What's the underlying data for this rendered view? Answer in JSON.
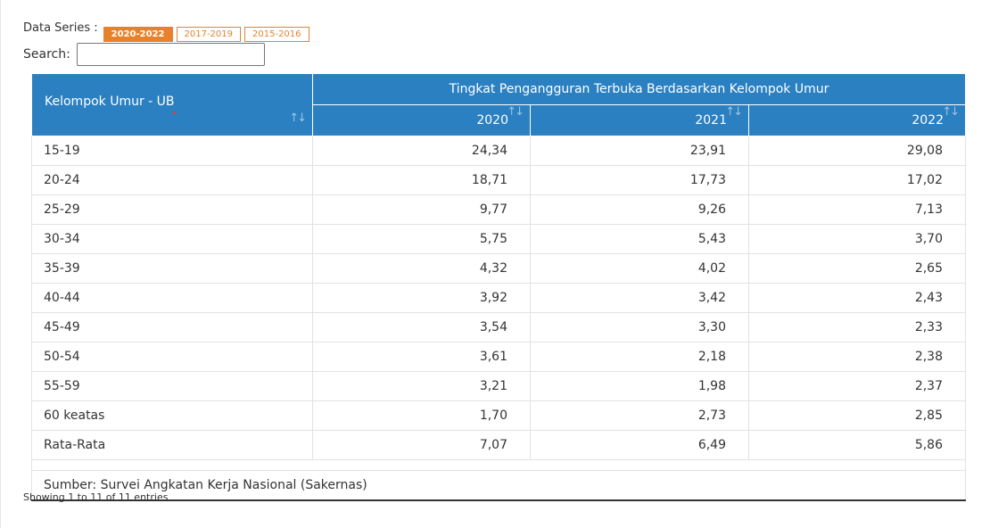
{
  "series": {
    "label": "Data Series :",
    "options": [
      "2020-2022",
      "2017-2019",
      "2015-2016"
    ],
    "active": "2020-2022"
  },
  "search": {
    "label": "Search:",
    "value": "",
    "placeholder": ""
  },
  "table": {
    "row_header": "Kelompok Umur - UB",
    "group_header": "Tingkat Pengangguran Terbuka Berdasarkan Kelompok Umur",
    "years": [
      "2020",
      "2021",
      "2022"
    ],
    "rows": [
      {
        "cat": "15-19",
        "v": [
          "24,34",
          "23,91",
          "29,08"
        ]
      },
      {
        "cat": "20-24",
        "v": [
          "18,71",
          "17,73",
          "17,02"
        ]
      },
      {
        "cat": "25-29",
        "v": [
          "9,77",
          "9,26",
          "7,13"
        ]
      },
      {
        "cat": "30-34",
        "v": [
          "5,75",
          "5,43",
          "3,70"
        ]
      },
      {
        "cat": "35-39",
        "v": [
          "4,32",
          "4,02",
          "2,65"
        ]
      },
      {
        "cat": "40-44",
        "v": [
          "3,92",
          "3,42",
          "2,43"
        ]
      },
      {
        "cat": "45-49",
        "v": [
          "3,54",
          "3,30",
          "2,33"
        ]
      },
      {
        "cat": "50-54",
        "v": [
          "3,61",
          "2,18",
          "2,38"
        ]
      },
      {
        "cat": "55-59",
        "v": [
          "3,21",
          "1,98",
          "2,37"
        ]
      },
      {
        "cat": "60 keatas",
        "v": [
          "1,70",
          "2,73",
          "2,85"
        ]
      },
      {
        "cat": "Rata-Rata",
        "v": [
          "7,07",
          "6,49",
          "5,86"
        ]
      }
    ],
    "source": "Sumber: Survei Angkatan Kerja Nasional (Sakernas)"
  },
  "info": "Showing 1 to 11 of 11 entries",
  "icons": {
    "sort": "sort-icon",
    "sort_glyph": "↑↓"
  },
  "colors": {
    "accent": "#e8822a",
    "header": "#2a80c1"
  }
}
